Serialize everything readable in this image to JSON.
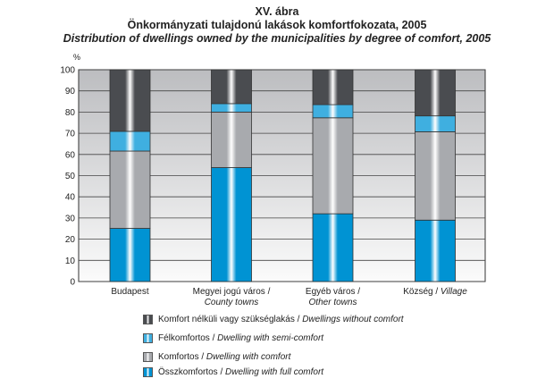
{
  "header": {
    "figure_no": "XV. ábra",
    "title_hu": "Önkormányzati tulajdonú lakások komfortfokozata, 2005",
    "title_en": "Distribution of  dwellings owned by the municipalities by degree of comfort, 2005"
  },
  "chart_data": {
    "type": "bar",
    "stacked": true,
    "title": "Distribution of dwellings owned by the municipalities by degree of comfort, 2005",
    "ylabel": "%",
    "ylim": [
      0,
      100
    ],
    "yticks": [
      "0",
      "10",
      "20",
      "30",
      "40",
      "50",
      "60",
      "70",
      "80",
      "90",
      "100"
    ],
    "grid": true,
    "legend_placement": "bottom",
    "categories": [
      {
        "hu": "Budapest",
        "en": ""
      },
      {
        "hu": "Megyei jogú város /",
        "en": "County towns"
      },
      {
        "hu": "Egyéb  város /",
        "en": "Other towns"
      },
      {
        "hu": "Község /",
        "en": "Village"
      }
    ],
    "series": [
      {
        "name_hu": "Összkomfortos /",
        "name_en": "Dwelling with full comfort",
        "color": "#0093d3",
        "values": [
          25.1,
          53.8,
          32.0,
          29.0
        ]
      },
      {
        "name_hu": "Komfortos /",
        "name_en": "Dwelling with comfort",
        "color": "#a8aaae",
        "values": [
          36.5,
          26.2,
          45.3,
          41.7
        ]
      },
      {
        "name_hu": "Félkomfortos /",
        "name_en": "Dwelling with semi-comfort",
        "color": "#3fafe0",
        "values": [
          9.3,
          4.0,
          6.2,
          7.5
        ]
      },
      {
        "name_hu": "Komfort nélküli vagy szükséglakás /",
        "name_en": "Dwellings without comfort",
        "color": "#4a4c50",
        "values": [
          29.1,
          16.0,
          16.5,
          21.8
        ]
      }
    ]
  }
}
